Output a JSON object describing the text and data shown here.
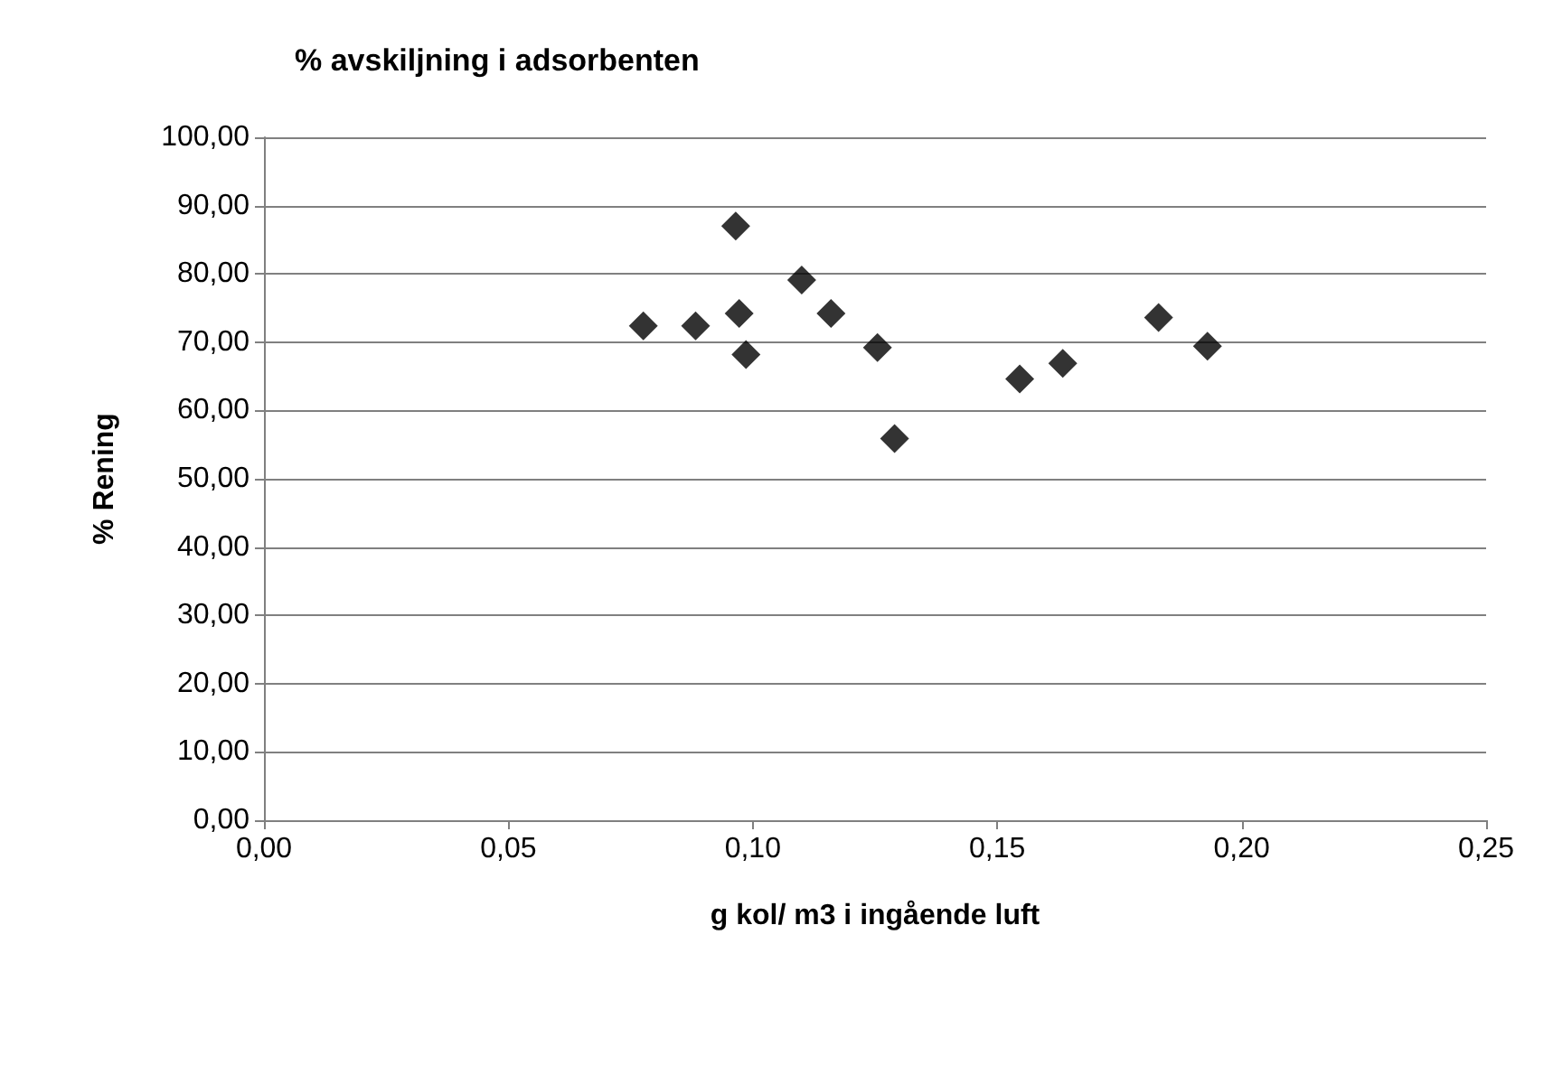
{
  "chart_data": {
    "type": "scatter",
    "title": "% avskiljning i adsorbenten",
    "xlabel": "g kol/ m3 i ingående luft",
    "ylabel": "% Rening",
    "x": [
      0.0776,
      0.0883,
      0.0965,
      0.0972,
      0.0986,
      0.11,
      0.116,
      0.1255,
      0.129,
      0.1546,
      0.1634,
      0.183,
      0.193
    ],
    "series": [
      {
        "color": "#000000",
        "values": [
          72.4,
          72.4,
          87.0,
          74.2,
          68.2,
          79.1,
          74.2,
          69.2,
          55.9,
          64.6,
          66.9,
          73.6,
          69.4
        ]
      }
    ],
    "xlim": [
      0,
      0.25
    ],
    "xticks": [
      {
        "value": 0,
        "label": "0,00"
      },
      {
        "value": 0.05,
        "label": "0,05"
      },
      {
        "value": 0.1,
        "label": "0,10"
      },
      {
        "value": 0.15,
        "label": "0,15"
      },
      {
        "value": 0.2,
        "label": "0,20"
      },
      {
        "value": 0.25,
        "label": "0,25"
      }
    ],
    "ylim": [
      0,
      100
    ],
    "yticks": [
      {
        "value": 0,
        "label": "0,00"
      },
      {
        "value": 10,
        "label": "10,00"
      },
      {
        "value": 20,
        "label": "20,00"
      },
      {
        "value": 30,
        "label": "30,00"
      },
      {
        "value": 40,
        "label": "40,00"
      },
      {
        "value": 50,
        "label": "50,00"
      },
      {
        "value": 60,
        "label": "60,00"
      },
      {
        "value": 70,
        "label": "70,00"
      },
      {
        "value": 80,
        "label": "80,00"
      },
      {
        "value": 90,
        "label": "90,00"
      },
      {
        "value": 100,
        "label": "100,00"
      }
    ],
    "grid": "y",
    "marker": "diamond"
  }
}
